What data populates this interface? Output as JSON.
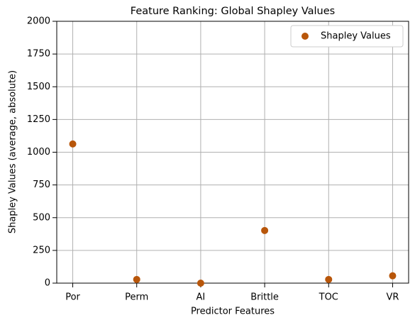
{
  "chart_data": {
    "type": "scatter",
    "title": "Feature Ranking: Global Shapley Values",
    "x_label": "Predictor Features",
    "y_label": "Shapley Values (average, absolute)",
    "categories": [
      "Por",
      "Perm",
      "AI",
      "Brittle",
      "TOC",
      "VR"
    ],
    "series": [
      {
        "name": "Shapley Values",
        "color": "#b8560a",
        "values": [
          1063,
          28,
          0,
          402,
          28,
          56
        ]
      }
    ],
    "ylim": [
      0,
      2000
    ],
    "yticks": [
      0,
      250,
      500,
      750,
      1000,
      1250,
      1500,
      1750,
      2000
    ],
    "grid": true,
    "legend": "upper right"
  }
}
